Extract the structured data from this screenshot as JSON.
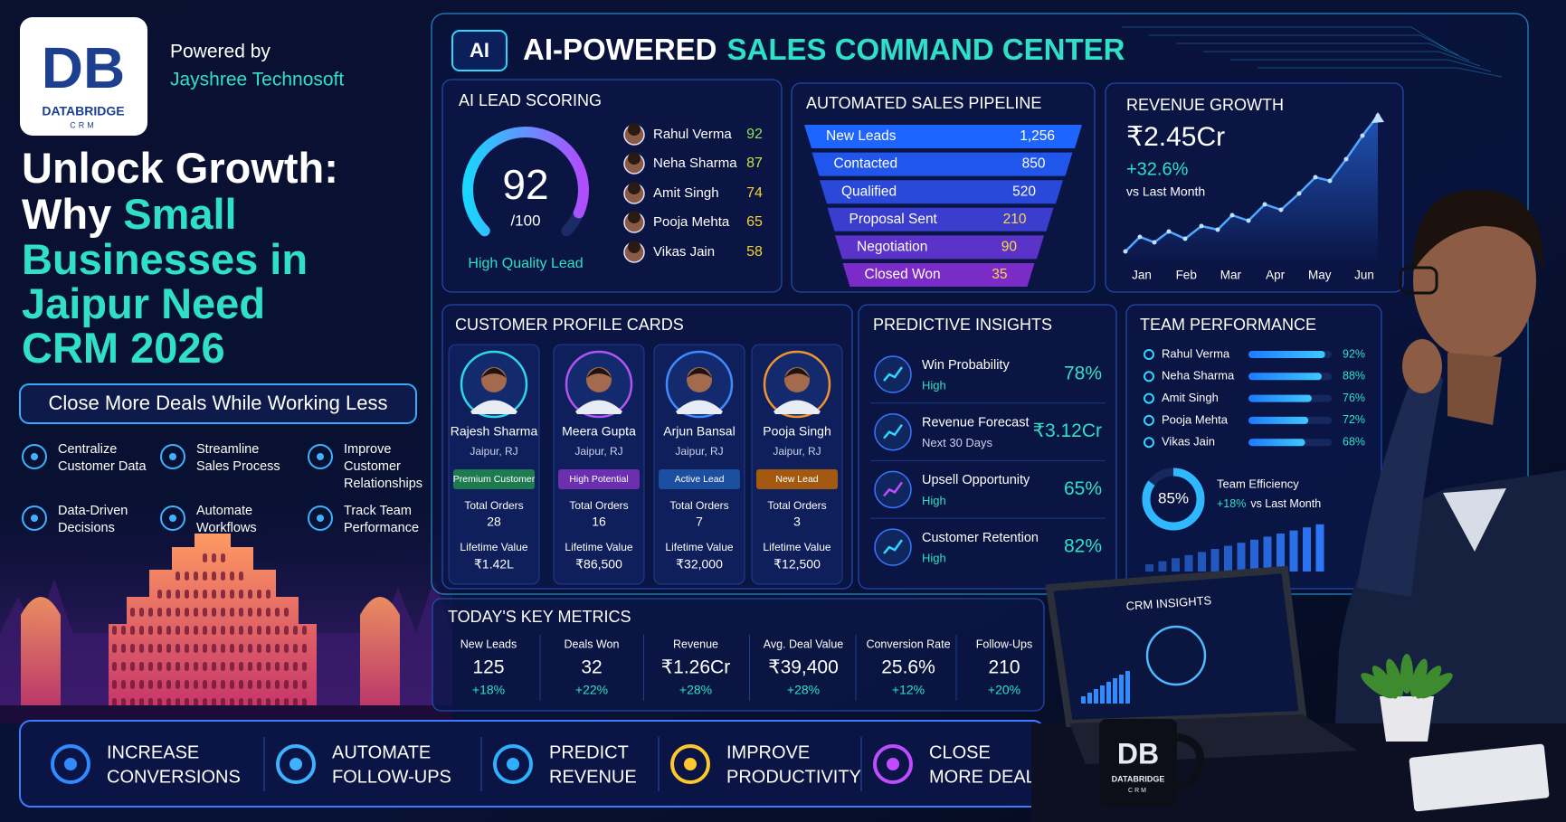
{
  "brand": {
    "logo_mark": "DB",
    "logo_name": "DATABRIDGE",
    "logo_sub": "CRM",
    "powered_by": "Powered by",
    "company": "Jayshree Technosoft"
  },
  "accent_color": "#2fe0c6",
  "headline": [
    [
      {
        "text": "Unlock Growth:"
      }
    ],
    [
      {
        "text": "Why"
      },
      {
        "text": "Small",
        "accent": true
      }
    ],
    [
      {
        "text": "Businesses in",
        "accent": true
      }
    ],
    [
      {
        "text": "Jaipur Need",
        "accent": true
      }
    ],
    [
      {
        "text": "CRM 2026",
        "accent": true
      }
    ]
  ],
  "tagline": "Close More Deals While Working Less",
  "features": [
    {
      "lines": [
        "Centralize",
        "Customer Data"
      ]
    },
    {
      "lines": [
        "Streamline",
        "Sales Process"
      ]
    },
    {
      "lines": [
        "Improve",
        "Customer",
        "Relationships"
      ]
    },
    {
      "lines": [
        "Data-Driven",
        "Decisions"
      ]
    },
    {
      "lines": [
        "Automate",
        "Workflows"
      ]
    },
    {
      "lines": [
        "Track Team",
        "Performance"
      ]
    }
  ],
  "benefits": [
    {
      "lines": [
        "INCREASE",
        "CONVERSIONS"
      ]
    },
    {
      "lines": [
        "AUTOMATE",
        "FOLLOW-UPS"
      ]
    },
    {
      "lines": [
        "PREDICT",
        "REVENUE"
      ]
    },
    {
      "lines": [
        "IMPROVE",
        "PRODUCTIVITY"
      ]
    },
    {
      "lines": [
        "CLOSE",
        "MORE DEALS"
      ]
    }
  ],
  "dashboard": {
    "badge": "AI",
    "title": [
      "AI-POWERED",
      "SALES COMMAND CENTER"
    ],
    "lead_scoring": {
      "title": "AI LEAD SCORING",
      "score": 92,
      "scale": {
        "value": 100,
        "label": "/100"
      },
      "caption": "High Quality Lead",
      "leads": [
        {
          "name": "Rahul Verma",
          "score": 92,
          "color": "#8fe35a"
        },
        {
          "name": "Neha Sharma",
          "score": 87,
          "color": "#c9e24a"
        },
        {
          "name": "Amit Singh",
          "score": 74,
          "color": "#f3d23c"
        },
        {
          "name": "Pooja Mehta",
          "score": 65,
          "color": "#f3d23c"
        },
        {
          "name": "Vikas Jain",
          "score": 58,
          "color": "#f3d23c"
        }
      ]
    },
    "pipeline": {
      "title": "AUTOMATED SALES PIPELINE",
      "stages": [
        {
          "name": "New Leads",
          "value": "1,256"
        },
        {
          "name": "Contacted",
          "value": "850"
        },
        {
          "name": "Qualified",
          "value": "520"
        },
        {
          "name": "Proposal Sent",
          "value": "210"
        },
        {
          "name": "Negotiation",
          "value": "90"
        },
        {
          "name": "Closed Won",
          "value": "35"
        }
      ]
    },
    "revenue": {
      "title": "REVENUE GROWTH",
      "value": "₹2.45Cr",
      "change": "+32.6%",
      "compare": "vs Last Month",
      "months": [
        "Jan",
        "Feb",
        "Mar",
        "Apr",
        "May",
        "Jun"
      ]
    },
    "customers": {
      "title": "CUSTOMER PROFILE CARDS",
      "cards": [
        {
          "name": "Rajesh Sharma",
          "location": "Jaipur, RJ",
          "tag": "Premium Customer",
          "tag_color": "#1e7a4f",
          "ring_color": "#2fd6e8",
          "orders_label": "Total Orders",
          "orders": 28,
          "ltv_label": "Lifetime Value",
          "ltv": "₹1.42L"
        },
        {
          "name": "Meera Gupta",
          "location": "Jaipur, RJ",
          "tag": "High Potential",
          "tag_color": "#6b2fb0",
          "ring_color": "#b155f0",
          "orders_label": "Total Orders",
          "orders": 16,
          "ltv_label": "Lifetime Value",
          "ltv": "₹86,500"
        },
        {
          "name": "Arjun Bansal",
          "location": "Jaipur, RJ",
          "tag": "Active Lead",
          "tag_color": "#1d4fa0",
          "ring_color": "#3d8bff",
          "orders_label": "Total Orders",
          "orders": 7,
          "ltv_label": "Lifetime Value",
          "ltv": "₹32,000"
        },
        {
          "name": "Pooja Singh",
          "location": "Jaipur, RJ",
          "tag": "New Lead",
          "tag_color": "#a35a10",
          "ring_color": "#f0942e",
          "orders_label": "Total Orders",
          "orders": 3,
          "ltv_label": "Lifetime Value",
          "ltv": "₹12,500"
        }
      ]
    },
    "insights": {
      "title": "PREDICTIVE INSIGHTS",
      "items": [
        {
          "label": "Win Probability",
          "sub": "High",
          "sub_color": "#2fe0c6",
          "value": "78%"
        },
        {
          "label": "Revenue Forecast",
          "sub": "Next 30 Days",
          "sub_color": "#c9d3ee",
          "value": "₹3.12Cr"
        },
        {
          "label": "Upsell Opportunity",
          "sub": "High",
          "sub_color": "#2fe0c6",
          "value": "65%"
        },
        {
          "label": "Customer Retention",
          "sub": "High",
          "sub_color": "#2fe0c6",
          "value": "82%"
        }
      ]
    },
    "team": {
      "title": "TEAM PERFORMANCE",
      "members": [
        {
          "name": "Rahul Verma",
          "value": 92,
          "label": "92%"
        },
        {
          "name": "Neha Sharma",
          "value": 88,
          "label": "88%"
        },
        {
          "name": "Amit Singh",
          "value": 76,
          "label": "76%"
        },
        {
          "name": "Pooja Mehta",
          "value": 72,
          "label": "72%"
        },
        {
          "name": "Vikas Jain",
          "value": 68,
          "label": "68%"
        }
      ],
      "efficiency": {
        "value": 85,
        "label": "85%",
        "title": "Team Efficiency",
        "change": "+18%",
        "compare": "vs Last Month"
      }
    },
    "metrics": {
      "title": "TODAY'S KEY METRICS",
      "items": [
        {
          "label": "New Leads",
          "value": "125",
          "change": "+18%"
        },
        {
          "label": "Deals Won",
          "value": "32",
          "change": "+22%"
        },
        {
          "label": "Revenue",
          "value": "₹1.26Cr",
          "change": "+28%"
        },
        {
          "label": "Avg. Deal Value",
          "value": "₹39,400",
          "change": "+28%"
        },
        {
          "label": "Conversion Rate",
          "value": "25.6%",
          "change": "+12%"
        },
        {
          "label": "Follow-Ups",
          "value": "210",
          "change": "+20%"
        }
      ]
    },
    "laptop_title": "CRM INSIGHTS",
    "mug": {
      "mark": "DB",
      "name": "DATABRIDGE",
      "sub": "CRM"
    }
  }
}
